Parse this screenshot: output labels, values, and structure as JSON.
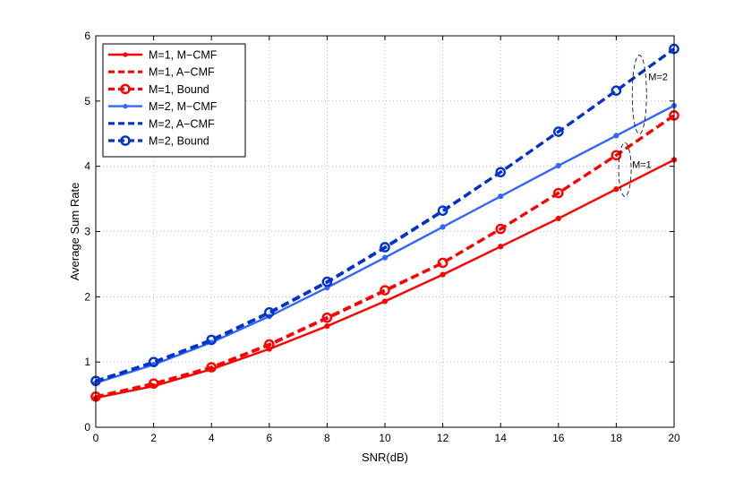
{
  "chart_data": {
    "type": "line",
    "title": "",
    "xlabel": "SNR(dB)",
    "ylabel": "Average Sum Rate",
    "xlim": [
      0,
      20
    ],
    "ylim": [
      0,
      6
    ],
    "xticks": [
      0,
      2,
      4,
      6,
      8,
      10,
      12,
      14,
      16,
      18,
      20
    ],
    "yticks": [
      0,
      1,
      2,
      3,
      4,
      5,
      6
    ],
    "grid": true,
    "legend_position": "top-left",
    "x": [
      0,
      2,
      4,
      6,
      8,
      10,
      12,
      14,
      16,
      18,
      20
    ],
    "series": [
      {
        "name": "M=1, M−CMF",
        "color": "#ff0000",
        "style": "solid",
        "marker": "dot",
        "width": "thin",
        "values": [
          0.45,
          0.63,
          0.89,
          1.2,
          1.55,
          1.93,
          2.34,
          2.77,
          3.2,
          3.65,
          4.1
        ]
      },
      {
        "name": "M=1, A−CMF",
        "color": "#ff0000",
        "style": "dashed",
        "marker": "none",
        "width": "thick",
        "values": [
          0.46,
          0.66,
          0.91,
          1.26,
          1.67,
          2.09,
          2.52,
          3.04,
          3.59,
          4.17,
          4.78
        ]
      },
      {
        "name": "M=1, Bound",
        "color": "#ff0000",
        "style": "dashed",
        "marker": "circle",
        "width": "thick",
        "values": [
          0.47,
          0.67,
          0.92,
          1.27,
          1.68,
          2.1,
          2.52,
          3.04,
          3.59,
          4.17,
          4.78
        ]
      },
      {
        "name": "M=2, M−CMF",
        "color": "#3366ff",
        "style": "solid",
        "marker": "dot",
        "width": "thin",
        "values": [
          0.68,
          0.96,
          1.3,
          1.7,
          2.14,
          2.6,
          3.07,
          3.54,
          4.01,
          4.47,
          4.93
        ]
      },
      {
        "name": "M=2, A−CMF",
        "color": "#0033cc",
        "style": "dashed",
        "marker": "none",
        "width": "thick",
        "values": [
          0.7,
          0.99,
          1.33,
          1.75,
          2.22,
          2.75,
          3.31,
          3.91,
          4.53,
          5.16,
          5.8
        ]
      },
      {
        "name": "M=2, Bound",
        "color": "#0033cc",
        "style": "dashed",
        "marker": "circle",
        "width": "thick",
        "values": [
          0.71,
          1.0,
          1.34,
          1.76,
          2.23,
          2.76,
          3.32,
          3.91,
          4.53,
          5.16,
          5.8
        ]
      }
    ],
    "annotations": [
      {
        "text": "M=2",
        "ellipse_center": [
          18.8,
          5.1
        ]
      },
      {
        "text": "M=1",
        "ellipse_center": [
          18.3,
          3.95
        ]
      }
    ]
  }
}
